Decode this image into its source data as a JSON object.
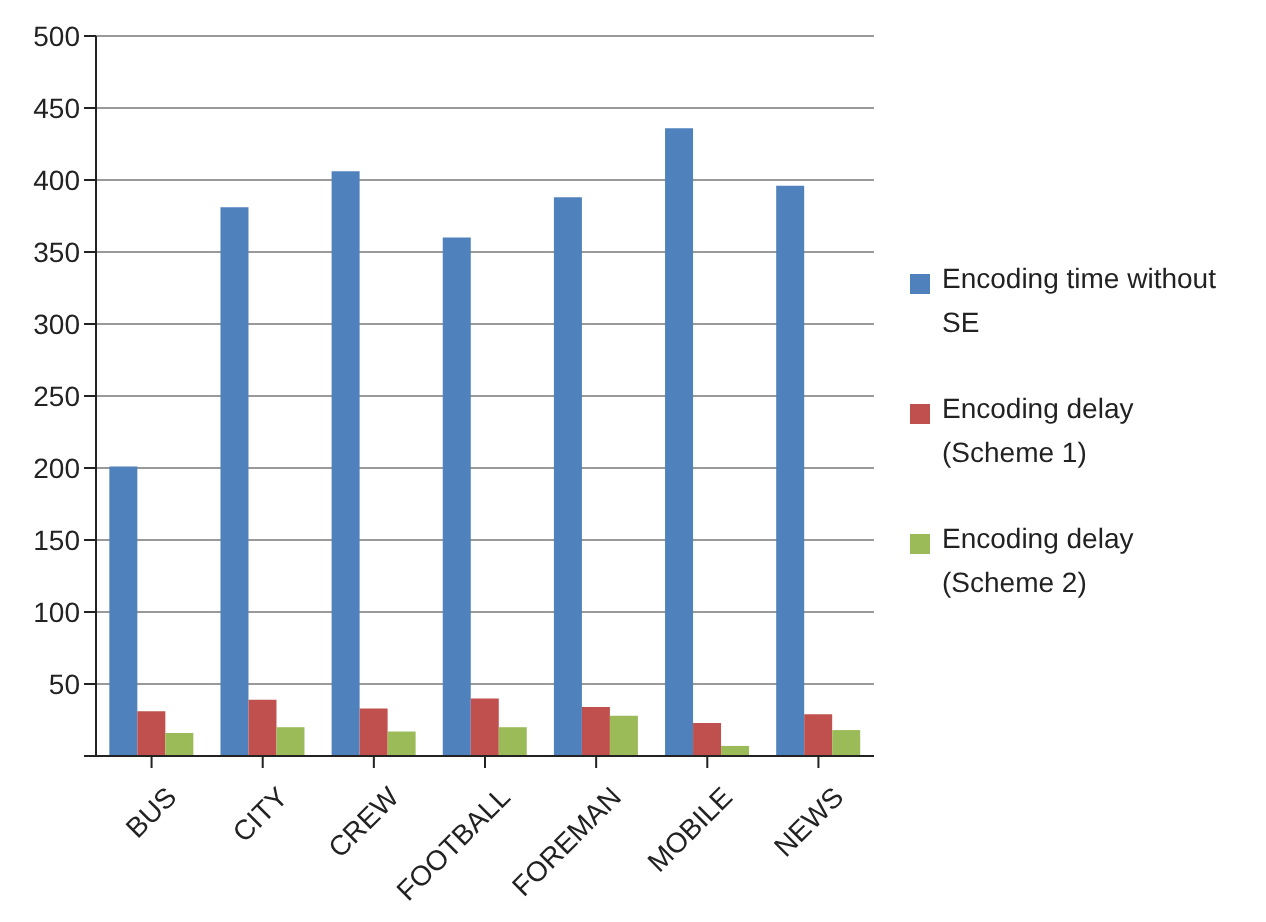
{
  "chart_data": {
    "type": "bar",
    "categories": [
      "BUS",
      "CITY",
      "CREW",
      "FOOTBALL",
      "FOREMAN",
      "MOBILE",
      "NEWS"
    ],
    "series": [
      {
        "name": "Encoding time without SE",
        "color": "#4f81bd",
        "values": [
          201,
          381,
          406,
          360,
          388,
          436,
          396
        ]
      },
      {
        "name": "Encoding delay (Scheme 1)",
        "color": "#c0504d",
        "values": [
          31,
          39,
          33,
          40,
          34,
          23,
          29
        ]
      },
      {
        "name": "Encoding delay (Scheme 2)",
        "color": "#9bbb59",
        "values": [
          16,
          20,
          17,
          20,
          28,
          7,
          18
        ]
      }
    ],
    "ylim": [
      0,
      500
    ],
    "yticks": [
      {
        "value": 0,
        "label": null
      },
      50,
      100,
      150,
      200,
      250,
      300,
      350,
      400,
      450,
      500
    ],
    "grid": "y",
    "legend": "right"
  }
}
